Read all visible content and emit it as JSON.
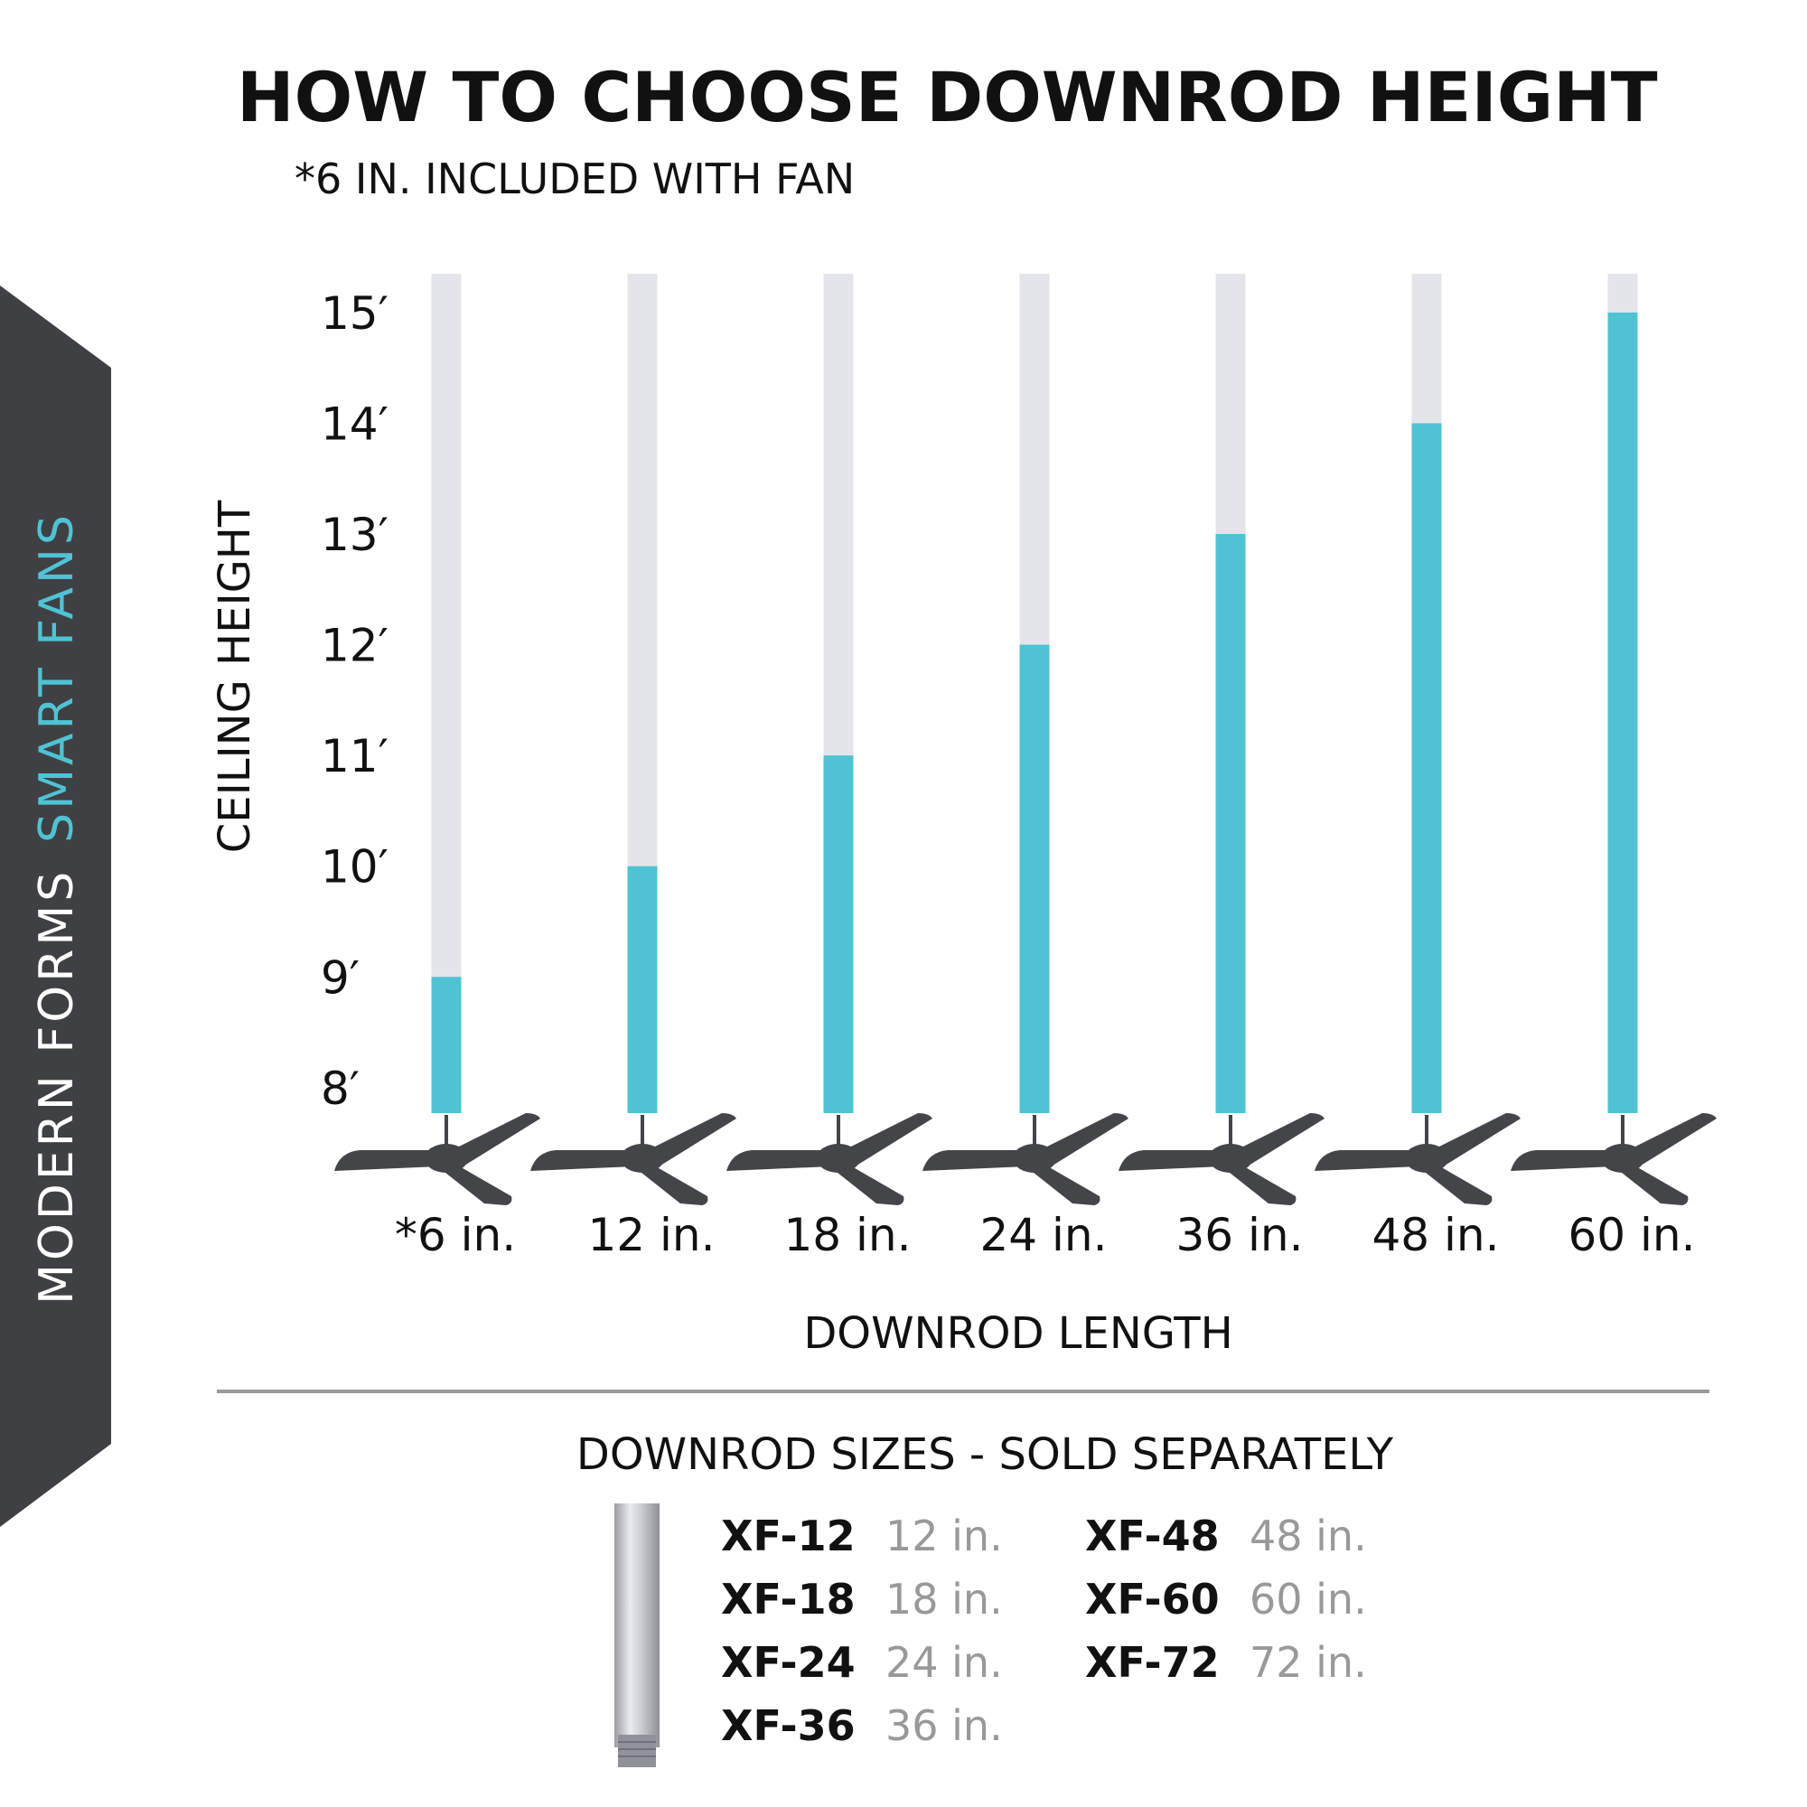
{
  "brand": {
    "name": "MODERN FORMS",
    "tagline": "SMART FANS"
  },
  "chart_data": {
    "type": "bar",
    "title": "HOW TO CHOOSE DOWNROD HEIGHT",
    "subtitle": "*6 IN. INCLUDED WITH FAN",
    "y_label": "CEILING HEIGHT",
    "x_label": "DOWNROD LENGTH",
    "categories": [
      "*6 in.",
      "12 in.",
      "18 in.",
      "24 in.",
      "36 in.",
      "48 in.",
      "60 in."
    ],
    "values": [
      9,
      10,
      11,
      12,
      13,
      14,
      15
    ],
    "color": "#4fc3d4",
    "ylim": [
      7.77,
      15.35
    ],
    "yticks": [
      {
        "value": 8,
        "label": "8′"
      },
      {
        "value": 9,
        "label": "9′"
      },
      {
        "value": 10,
        "label": "10′"
      },
      {
        "value": 11,
        "label": "11′"
      },
      {
        "value": 12,
        "label": "12′"
      },
      {
        "value": 13,
        "label": "13′"
      },
      {
        "value": 14,
        "label": "14′"
      },
      {
        "value": 15,
        "label": "15′"
      }
    ],
    "grid": false
  },
  "downrod_sizes": {
    "title": "DOWNROD SIZES - SOLD SEPARATELY",
    "items": [
      {
        "code": "XF-12",
        "length": "12 in."
      },
      {
        "code": "XF-18",
        "length": "18 in."
      },
      {
        "code": "XF-24",
        "length": "24 in."
      },
      {
        "code": "XF-36",
        "length": "36 in."
      },
      {
        "code": "XF-48",
        "length": "48 in."
      },
      {
        "code": "XF-60",
        "length": "60 in."
      },
      {
        "code": "XF-72",
        "length": "72 in."
      }
    ]
  }
}
